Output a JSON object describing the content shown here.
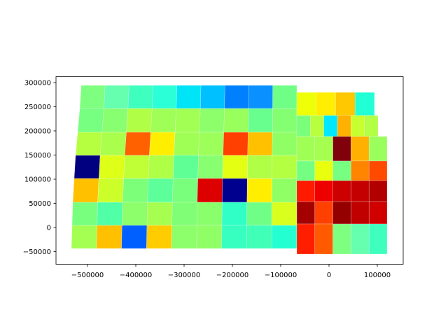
{
  "figure": {
    "x_tick_labels": [
      "−500000",
      "−400000",
      "−300000",
      "−200000",
      "−100000",
      "0",
      "100000"
    ],
    "y_tick_labels": [
      "−50000",
      "0",
      "50000",
      "100000",
      "150000",
      "200000",
      "250000",
      "300000"
    ]
  },
  "map": {
    "type": "choropleth",
    "colormap": "jet",
    "color_scale_labels": "none shown",
    "grid": false,
    "legend": "none",
    "region": "Kansas counties",
    "x_ticks": [
      -500000,
      -400000,
      -300000,
      -200000,
      -100000,
      0,
      100000
    ],
    "y_ticks": [
      -50000,
      0,
      50000,
      100000,
      150000,
      200000,
      250000,
      300000
    ],
    "xlim": [
      -565000,
      155000
    ],
    "ylim": [
      -75000,
      315000
    ],
    "county_fill_colors": [
      "#7fff7f",
      "#66ffb0",
      "#3fffbf",
      "#2bffd8",
      "#00e4f8",
      "#00c0ff",
      "#0080ff",
      "#0a90ff",
      "#6fff86",
      "#76ff80",
      "#88ff70",
      "#b0ff46",
      "#9fff57",
      "#a2ff54",
      "#8cff6a",
      "#99ff5d",
      "#68ff8e",
      "#84ff72",
      "#b6ff40",
      "#aaff4c",
      "#ff6000",
      "#ffee00",
      "#a0ff55",
      "#9cff5a",
      "#ff4000",
      "#ffc000",
      "#90ff66",
      "#000080",
      "#deff18",
      "#c0ff36",
      "#afff47",
      "#5fff96",
      "#88ff70",
      "#e4ff12",
      "#b0ff46",
      "#b4ff42",
      "#ffc000",
      "#ccff2a",
      "#7cff79",
      "#5cff9a",
      "#79ff7c",
      "#dd0000",
      "#00008f",
      "#ffee00",
      "#90ff66",
      "#78ff7e",
      "#50ffa6",
      "#8cff6a",
      "#a6ff50",
      "#80ff76",
      "#8aff6c",
      "#30ffc6",
      "#70ff86",
      "#d8ff1e",
      "#a4ff52",
      "#ffc000",
      "#0060ff",
      "#ffcc00",
      "#8cff6a",
      "#90ff66",
      "#36ffc0",
      "#40ffb6",
      "#24ffd2",
      "#eeff08",
      "#ffee00",
      "#ffc800",
      "#20ffd6",
      "#7aff7c",
      "#b8ff3e",
      "#00e8ff",
      "#ffb000",
      "#c8ff2e",
      "#b2ff44",
      "#a0ff55",
      "#a6ff50",
      "#80000b",
      "#ffb000",
      "#9aff5c",
      "#74ff82",
      "#e8ff0e",
      "#76ff80",
      "#ff8400",
      "#ff4a00",
      "#ff1a00",
      "#ee0000",
      "#cc0000",
      "#c40000",
      "#b20000",
      "#a40000",
      "#ff4000",
      "#940000",
      "#c00000",
      "#d00000",
      "#ff1e00",
      "#ff5a00"
    ]
  }
}
